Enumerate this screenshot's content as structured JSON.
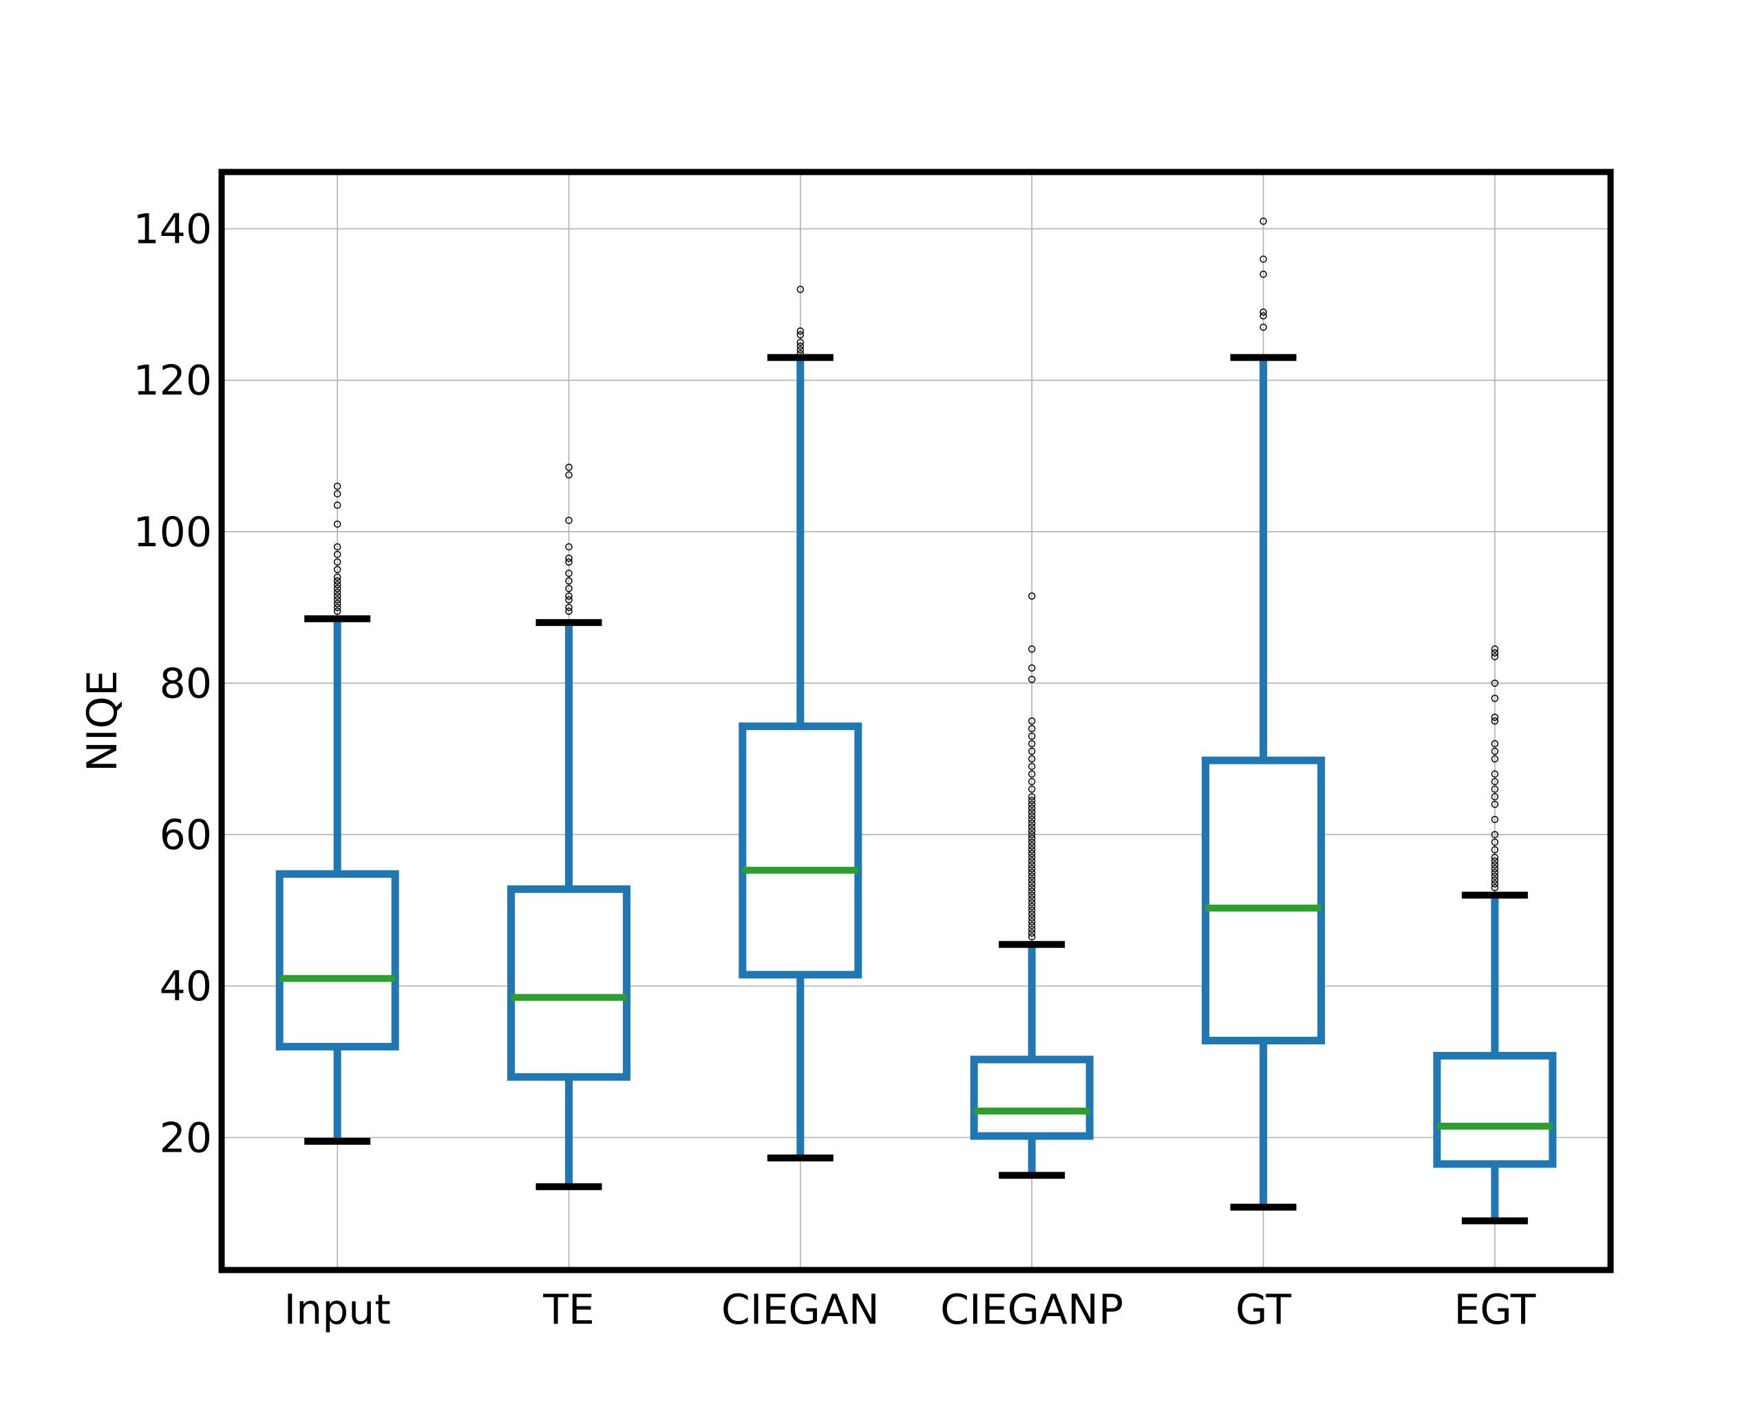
{
  "chart_data": {
    "type": "box",
    "title": "",
    "xlabel": "",
    "ylabel": "NIQE",
    "ylim": [
      2.5,
      147.5
    ],
    "yticks": [
      20,
      40,
      60,
      80,
      100,
      120,
      140
    ],
    "ytick_labels": [
      "20",
      "40",
      "60",
      "80",
      "100",
      "120",
      "140"
    ],
    "grid": true,
    "legend": "none",
    "categories": [
      "Input",
      "TE",
      "CIEGAN",
      "CIEGANP",
      "GT",
      "EGT"
    ],
    "boxes": [
      {
        "name": "Input",
        "whislo": 19.5,
        "q1": 32.0,
        "med": 41.0,
        "q3": 54.8,
        "whishi": 88.5,
        "fliers": [
          89.5,
          90.0,
          90.5,
          91.0,
          91.5,
          92.0,
          92.5,
          93.0,
          93.5,
          94.0,
          95.0,
          96.0,
          97.0,
          98.0,
          101.0,
          103.5,
          105.0,
          106.0
        ]
      },
      {
        "name": "TE",
        "whislo": 13.5,
        "q1": 28.0,
        "med": 38.5,
        "q3": 52.8,
        "whishi": 88.0,
        "fliers": [
          89.5,
          90.0,
          91.0,
          91.5,
          92.5,
          93.5,
          94.5,
          96.0,
          96.5,
          98.0,
          101.5,
          107.5,
          108.5
        ]
      },
      {
        "name": "CIEGAN",
        "whislo": 17.3,
        "q1": 41.5,
        "med": 55.3,
        "q3": 74.3,
        "whishi": 123.0,
        "fliers": [
          123.5,
          124.0,
          124.5,
          125.0,
          126.0,
          126.5,
          132.0
        ]
      },
      {
        "name": "CIEGANP",
        "whislo": 15.0,
        "q1": 20.2,
        "med": 23.5,
        "q3": 30.3,
        "whishi": 45.5,
        "fliers": [
          46.5,
          47.0,
          47.5,
          48.0,
          48.5,
          49.0,
          49.5,
          50.0,
          50.5,
          51.0,
          51.5,
          52.0,
          52.5,
          53.0,
          53.5,
          54.0,
          54.5,
          55.0,
          55.5,
          56.0,
          56.5,
          57.0,
          57.5,
          58.0,
          58.5,
          59.0,
          59.5,
          60.0,
          60.5,
          61.0,
          61.5,
          62.0,
          62.5,
          63.0,
          63.5,
          64.0,
          64.5,
          65.0,
          66.0,
          67.0,
          68.0,
          69.0,
          70.0,
          71.0,
          72.0,
          73.0,
          74.0,
          75.0,
          80.5,
          82.0,
          84.5,
          91.5
        ]
      },
      {
        "name": "GT",
        "whislo": 10.8,
        "q1": 32.8,
        "med": 50.3,
        "q3": 69.8,
        "whishi": 123.0,
        "fliers": [
          127.0,
          128.5,
          129.0,
          134.0,
          136.0,
          141.0
        ]
      },
      {
        "name": "EGT",
        "whislo": 9.0,
        "q1": 16.5,
        "med": 21.5,
        "q3": 30.8,
        "whishi": 52.0,
        "fliers": [
          53.0,
          53.5,
          54.0,
          54.5,
          55.0,
          55.5,
          56.0,
          56.5,
          57.0,
          58.0,
          59.0,
          60.0,
          62.0,
          64.0,
          65.0,
          66.0,
          67.0,
          68.0,
          70.0,
          71.0,
          72.0,
          75.0,
          75.5,
          78.0,
          80.0,
          83.5,
          84.0,
          84.5
        ]
      }
    ],
    "colors": {
      "box": "#1f77b4",
      "median": "#2ca02c",
      "whisker_cap": "#000000",
      "flier_edge": "#000000",
      "grid": "#b0b0b0",
      "frame": "#000000"
    }
  }
}
